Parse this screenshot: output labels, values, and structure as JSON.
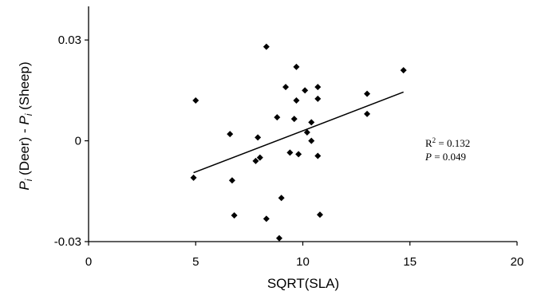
{
  "chart_data": {
    "type": "scatter",
    "xlabel": "SQRT(SLA)",
    "ylabel": {
      "p1": "P",
      "sub1": "i",
      "mid": " (Deer) - ",
      "p2": "P",
      "sub2": "i",
      "end": " (Sheep)"
    },
    "xlim": [
      0,
      20
    ],
    "ylim": [
      -0.03,
      0.04
    ],
    "xticks": [
      0,
      5,
      10,
      15,
      20
    ],
    "xtick_labels": [
      "0",
      "5",
      "10",
      "15",
      "20"
    ],
    "yticks": [
      -0.03,
      0,
      0.03
    ],
    "ytick_labels": [
      "-0.03",
      "0",
      "0.03"
    ],
    "grid": false,
    "points": [
      {
        "x": 4.9,
        "y": -0.011
      },
      {
        "x": 5.0,
        "y": 0.012
      },
      {
        "x": 6.6,
        "y": 0.002
      },
      {
        "x": 6.7,
        "y": -0.0118
      },
      {
        "x": 6.8,
        "y": -0.0222
      },
      {
        "x": 7.8,
        "y": -0.006
      },
      {
        "x": 7.9,
        "y": 0.001
      },
      {
        "x": 8.0,
        "y": -0.005
      },
      {
        "x": 8.3,
        "y": 0.028
      },
      {
        "x": 8.3,
        "y": -0.0232
      },
      {
        "x": 8.8,
        "y": 0.007
      },
      {
        "x": 8.9,
        "y": -0.029
      },
      {
        "x": 9.0,
        "y": -0.017
      },
      {
        "x": 9.2,
        "y": 0.016
      },
      {
        "x": 9.4,
        "y": -0.0035
      },
      {
        "x": 9.6,
        "y": 0.0065
      },
      {
        "x": 9.7,
        "y": 0.022
      },
      {
        "x": 9.7,
        "y": 0.012
      },
      {
        "x": 9.8,
        "y": -0.004
      },
      {
        "x": 10.1,
        "y": 0.015
      },
      {
        "x": 10.2,
        "y": 0.0025
      },
      {
        "x": 10.4,
        "y": 0.0
      },
      {
        "x": 10.4,
        "y": 0.0055
      },
      {
        "x": 10.7,
        "y": 0.016
      },
      {
        "x": 10.7,
        "y": 0.0125
      },
      {
        "x": 10.7,
        "y": -0.0045
      },
      {
        "x": 10.8,
        "y": -0.022
      },
      {
        "x": 13.0,
        "y": 0.014
      },
      {
        "x": 13.0,
        "y": 0.008
      },
      {
        "x": 14.7,
        "y": 0.021
      }
    ],
    "regression_line": {
      "x": [
        4.9,
        14.7
      ],
      "y": [
        -0.0095,
        0.0145
      ]
    },
    "annotation": {
      "r2_label": "R",
      "r2_sup": "2",
      "r2_value": " = 0.132",
      "p_label": "P",
      "p_value": " = 0.049"
    }
  }
}
